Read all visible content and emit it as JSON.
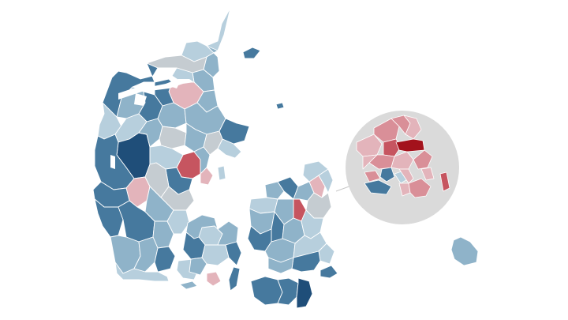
{
  "map": {
    "colors": {
      "dark_blue": "#1f4e79",
      "mid_blue": "#46799e",
      "light_blue": "#8fb3c9",
      "pale_blue": "#b7cfdd",
      "neutral_gray": "#c5ccd1",
      "pale_red": "#e3b4bb",
      "light_red": "#d98f98",
      "mid_red": "#c65560",
      "dark_red": "#a3121c",
      "inset_background": "#dadada",
      "leader_line": "#c8c8c8"
    },
    "inset": {
      "region": "capital-area",
      "zoomed": true
    }
  }
}
